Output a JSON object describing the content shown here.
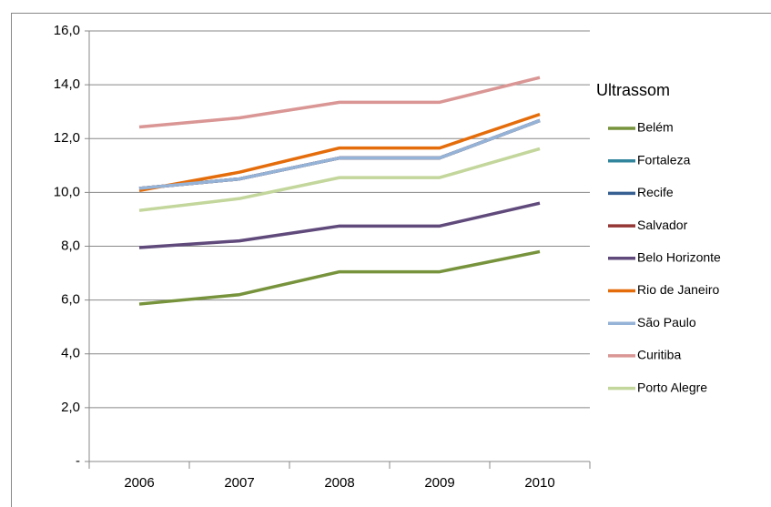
{
  "chart_data": {
    "type": "line",
    "legend_title": "Ultrassom",
    "categories": [
      "2006",
      "2007",
      "2008",
      "2009",
      "2010"
    ],
    "series": [
      {
        "name": "Belém",
        "color": "#77933c",
        "values": [
          5.85,
          6.2,
          7.05,
          7.05,
          7.8
        ]
      },
      {
        "name": "Fortaleza",
        "color": "#31859c",
        "values": [
          10.15,
          10.5,
          11.28,
          11.28,
          12.67
        ]
      },
      {
        "name": "Recife",
        "color": "#376092",
        "values": [
          10.15,
          10.5,
          11.28,
          11.28,
          12.67
        ]
      },
      {
        "name": "Salvador",
        "color": "#953735",
        "values": [
          10.15,
          10.5,
          11.28,
          11.28,
          12.67
        ]
      },
      {
        "name": "Belo Horizonte",
        "color": "#604a7b",
        "values": [
          7.95,
          8.2,
          8.75,
          8.75,
          9.6
        ]
      },
      {
        "name": "Rio de Janeiro",
        "color": "#e46c0a",
        "values": [
          10.07,
          10.75,
          11.65,
          11.65,
          12.9
        ]
      },
      {
        "name": "São Paulo",
        "color": "#95b3d7",
        "values": [
          10.15,
          10.5,
          11.28,
          11.28,
          12.67
        ]
      },
      {
        "name": "Curitiba",
        "color": "#d99694",
        "values": [
          12.43,
          12.77,
          13.35,
          13.35,
          14.27
        ]
      },
      {
        "name": "Porto Alegre",
        "color": "#c3d69b",
        "values": [
          9.33,
          9.77,
          10.55,
          10.55,
          11.62
        ]
      }
    ],
    "ylim": [
      0,
      16
    ],
    "yticks": [
      {
        "value": 0,
        "label": "-"
      },
      {
        "value": 2,
        "label": "2,0"
      },
      {
        "value": 4,
        "label": "4,0"
      },
      {
        "value": 6,
        "label": "6,0"
      },
      {
        "value": 8,
        "label": "8,0"
      },
      {
        "value": 10,
        "label": "10,0"
      },
      {
        "value": 12,
        "label": "12,0"
      },
      {
        "value": 14,
        "label": "14,0"
      },
      {
        "value": 16,
        "label": "16,0"
      }
    ],
    "grid": true,
    "legend": "right"
  }
}
